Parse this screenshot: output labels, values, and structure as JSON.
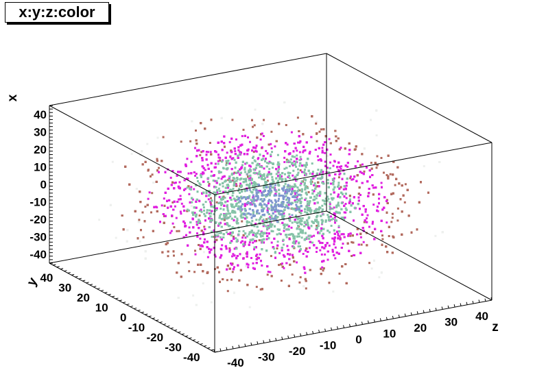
{
  "chart_data": {
    "type": "scatter",
    "title": "x:y:z:color",
    "axes": {
      "x": {
        "label": "x",
        "range": [
          -45,
          45
        ],
        "ticks": [
          "-40",
          "-30",
          "-20",
          "-10",
          "0",
          "10",
          "20",
          "30",
          "40"
        ]
      },
      "y": {
        "label": "y",
        "range": [
          -45,
          45
        ],
        "ticks": [
          "-40",
          "-30",
          "-20",
          "-10",
          "0",
          "10",
          "20",
          "30",
          "40"
        ]
      },
      "z": {
        "label": "z",
        "range": [
          -45,
          45
        ],
        "ticks": [
          "-40",
          "-30",
          "-20",
          "-10",
          "0",
          "10",
          "20",
          "30",
          "40"
        ]
      }
    },
    "color_groups": [
      {
        "color": "#7f97cf",
        "radius_range": [
          0,
          10
        ]
      },
      {
        "color": "#86c3a8",
        "radius_range": [
          10,
          25
        ]
      },
      {
        "color": "#e020e0",
        "radius_range": [
          25,
          35
        ]
      },
      {
        "color": "#b26a5e",
        "radius_range": [
          35,
          45
        ]
      },
      {
        "color": "#eef0ee",
        "radius_range": [
          45,
          60
        ]
      }
    ],
    "legend": "none",
    "grid": false
  }
}
